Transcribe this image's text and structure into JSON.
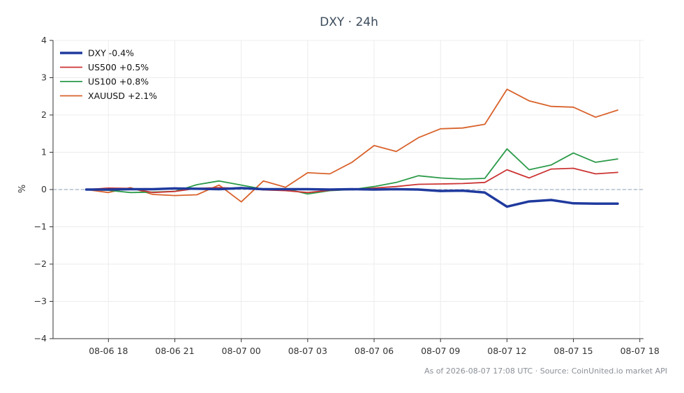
{
  "chart_data": {
    "type": "line",
    "title": "DXY · 24h",
    "xlabel": "",
    "ylabel": "%",
    "ylim": [
      -4,
      4
    ],
    "yticks": [
      {
        "v": 4,
        "label": "4"
      },
      {
        "v": 3,
        "label": "3"
      },
      {
        "v": 2,
        "label": "2"
      },
      {
        "v": 1,
        "label": "1"
      },
      {
        "v": 0,
        "label": "0"
      },
      {
        "v": -1,
        "label": "−1"
      },
      {
        "v": -2,
        "label": "−2"
      },
      {
        "v": -3,
        "label": "−3"
      },
      {
        "v": -4,
        "label": "−4"
      }
    ],
    "xlim": [
      "2026-08-06 15:30",
      "2026-08-07 18:10"
    ],
    "xticks": [
      {
        "t": "2026-08-06 18:00",
        "label": "08-06 18"
      },
      {
        "t": "2026-08-06 21:00",
        "label": "08-06 21"
      },
      {
        "t": "2026-08-07 00:00",
        "label": "08-07 00"
      },
      {
        "t": "2026-08-07 03:00",
        "label": "08-07 03"
      },
      {
        "t": "2026-08-07 06:00",
        "label": "08-07 06"
      },
      {
        "t": "2026-08-07 09:00",
        "label": "08-07 09"
      },
      {
        "t": "2026-08-07 12:00",
        "label": "08-07 12"
      },
      {
        "t": "2026-08-07 15:00",
        "label": "08-07 15"
      },
      {
        "t": "2026-08-07 18:00",
        "label": "08-07 18"
      }
    ],
    "grid": true,
    "legend": "top-left",
    "zero_line": true,
    "x": [
      "2026-08-06 17:00",
      "2026-08-06 18:00",
      "2026-08-06 19:00",
      "2026-08-06 20:00",
      "2026-08-06 21:00",
      "2026-08-06 22:00",
      "2026-08-06 23:00",
      "2026-08-07 00:00",
      "2026-08-07 01:00",
      "2026-08-07 02:00",
      "2026-08-07 03:00",
      "2026-08-07 04:00",
      "2026-08-07 05:00",
      "2026-08-07 06:00",
      "2026-08-07 07:00",
      "2026-08-07 08:00",
      "2026-08-07 09:00",
      "2026-08-07 10:00",
      "2026-08-07 11:00",
      "2026-08-07 12:00",
      "2026-08-07 13:00",
      "2026-08-07 14:00",
      "2026-08-07 15:00",
      "2026-08-07 16:00",
      "2026-08-07 17:00"
    ],
    "series": [
      {
        "name": "DXY -0.4%",
        "color": "#1f3a9e",
        "width": 3.5,
        "values": [
          0.0,
          0.0,
          0.01,
          0.01,
          0.03,
          0.02,
          0.01,
          0.04,
          0.01,
          0.01,
          0.01,
          0.0,
          0.01,
          0.0,
          0.01,
          0.0,
          -0.04,
          -0.03,
          -0.08,
          -0.46,
          -0.32,
          -0.28,
          -0.37,
          -0.38,
          -0.38
        ]
      },
      {
        "name": "US500 +0.5%",
        "color": "#cc3333",
        "width": 1.8,
        "values": [
          0.0,
          0.04,
          0.03,
          -0.08,
          -0.05,
          0.03,
          0.05,
          0.03,
          -0.01,
          -0.03,
          -0.08,
          -0.02,
          0.0,
          0.04,
          0.08,
          0.14,
          0.15,
          0.16,
          0.19,
          0.53,
          0.31,
          0.55,
          0.57,
          0.42,
          0.46
        ]
      },
      {
        "name": "US100 +0.8%",
        "color": "#2a9a48",
        "width": 1.8,
        "values": [
          0.0,
          -0.02,
          -0.08,
          -0.07,
          -0.05,
          0.13,
          0.23,
          0.12,
          0.01,
          0.02,
          -0.12,
          -0.03,
          0.0,
          0.08,
          0.19,
          0.37,
          0.31,
          0.28,
          0.3,
          1.09,
          0.53,
          0.66,
          0.98,
          0.73,
          0.82
        ]
      },
      {
        "name": "XAUUSD +2.1%",
        "color": "#d9622b",
        "width": 1.8,
        "values": [
          0.0,
          -0.08,
          0.05,
          -0.13,
          -0.16,
          -0.14,
          0.12,
          -0.33,
          0.23,
          0.06,
          0.45,
          0.42,
          0.73,
          1.18,
          1.02,
          1.39,
          1.63,
          1.65,
          1.75,
          2.69,
          2.38,
          2.23,
          2.21,
          1.94,
          2.13
        ]
      }
    ]
  },
  "footer": "As of 2026-08-07 17:08 UTC · Source: CoinUnited.io market API"
}
